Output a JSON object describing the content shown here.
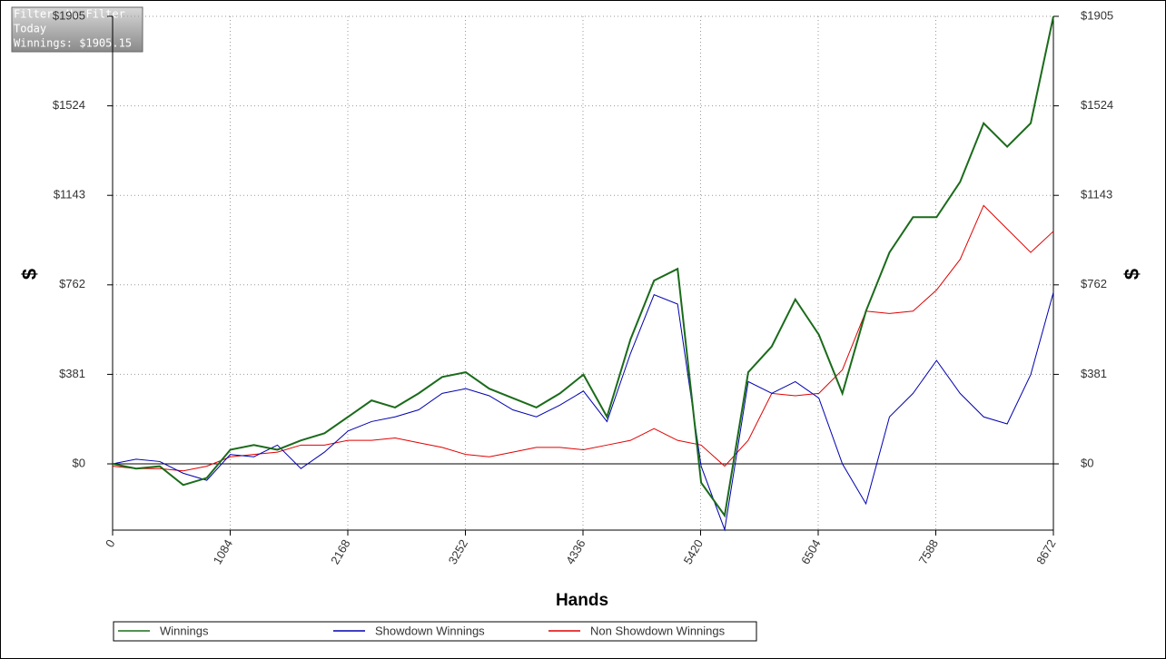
{
  "chart_data": {
    "type": "line",
    "annotations": [
      "Filter: No Filter",
      "Today",
      "Winnings: $1905.15"
    ],
    "xlabel": "Hands",
    "ylabel": "$",
    "y2label": "$",
    "x": [
      0,
      217,
      434,
      651,
      868,
      1085,
      1302,
      1519,
      1736,
      1953,
      2170,
      2387,
      2604,
      2821,
      3038,
      3255,
      3472,
      3689,
      3906,
      4123,
      4340,
      4557,
      4774,
      4991,
      5208,
      5425,
      5642,
      5859,
      6076,
      6293,
      6510,
      6727,
      6944,
      7161,
      7378,
      7595,
      7812,
      8029,
      8246,
      8463,
      8672
    ],
    "series": [
      {
        "name": "Winnings",
        "color": "#1a6b1a",
        "values": [
          0,
          -20,
          -10,
          -90,
          -60,
          60,
          80,
          60,
          100,
          130,
          200,
          270,
          240,
          300,
          370,
          390,
          320,
          280,
          240,
          300,
          380,
          200,
          530,
          780,
          830,
          -80,
          -220,
          390,
          500,
          700,
          550,
          300,
          650,
          900,
          1050,
          1050,
          1200,
          1450,
          1350,
          1450,
          1905
        ]
      },
      {
        "name": "Showdown Winnings",
        "color": "#0000b0",
        "values": [
          0,
          20,
          10,
          -40,
          -70,
          40,
          30,
          80,
          -20,
          50,
          140,
          180,
          200,
          230,
          300,
          320,
          290,
          230,
          200,
          250,
          310,
          180,
          470,
          720,
          680,
          -10,
          -280,
          350,
          300,
          350,
          280,
          0,
          -170,
          200,
          300,
          440,
          300,
          200,
          170,
          380,
          730
        ]
      },
      {
        "name": "Non Showdown Winnings",
        "color": "#e00000",
        "values": [
          -10,
          -20,
          -20,
          -30,
          -10,
          30,
          40,
          50,
          80,
          80,
          100,
          100,
          110,
          90,
          70,
          40,
          30,
          50,
          70,
          70,
          60,
          80,
          100,
          150,
          100,
          80,
          -10,
          100,
          300,
          290,
          300,
          400,
          650,
          640,
          650,
          740,
          870,
          1100,
          1000,
          900,
          990
        ]
      }
    ],
    "xlim": [
      0,
      8672
    ],
    "xticks": [
      0,
      1084,
      2168,
      3252,
      4336,
      5420,
      6504,
      7588,
      8672
    ],
    "ylim": [
      -282,
      1905
    ],
    "yticks": [
      {
        "value": 0,
        "label": "$0"
      },
      {
        "value": 381,
        "label": "$381"
      },
      {
        "value": 762,
        "label": "$762"
      },
      {
        "value": 1143,
        "label": "$1143"
      },
      {
        "value": 1524,
        "label": "$1524"
      },
      {
        "value": 1905,
        "label": "$1905"
      }
    ],
    "grid": true
  }
}
